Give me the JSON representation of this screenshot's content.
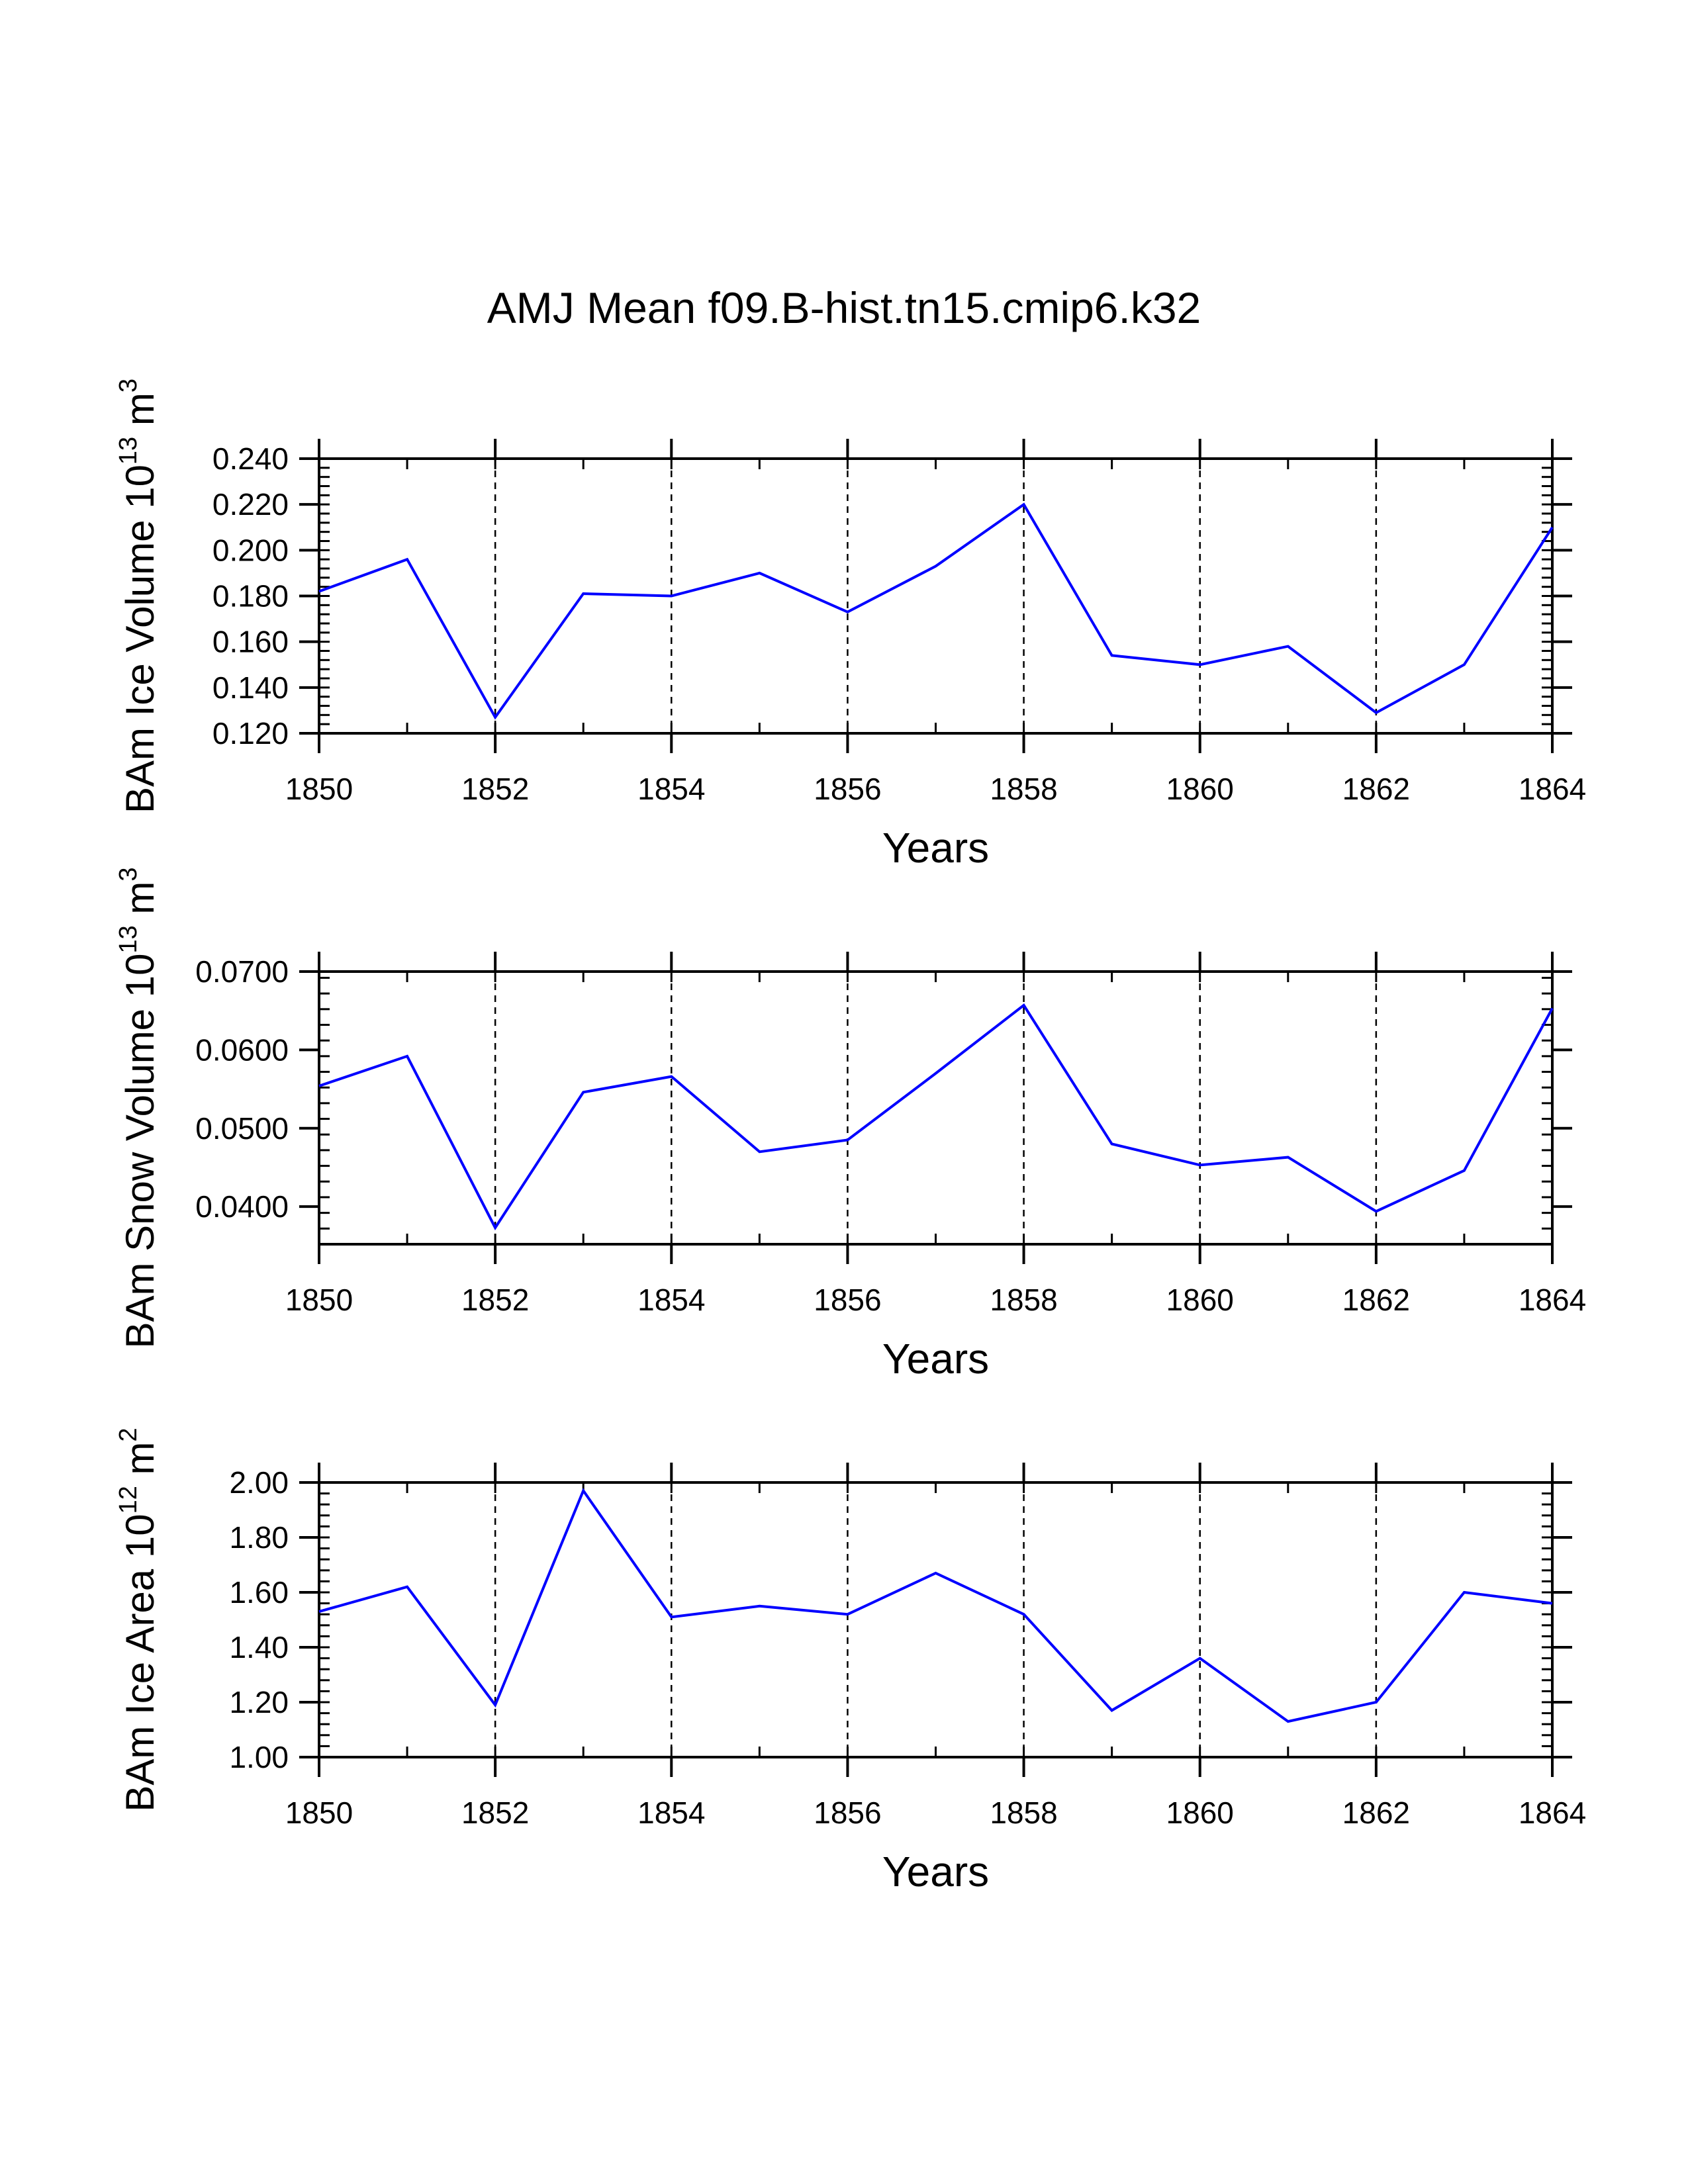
{
  "figure": {
    "title": "AMJ Mean f09.B-hist.tn15.cmip6.k32"
  },
  "style": {
    "line_color": "#0000ff",
    "axis_color": "#000000",
    "grid_color": "#000000",
    "background": "#ffffff"
  },
  "chart_data": [
    {
      "type": "line",
      "name": "ice-volume",
      "title": "",
      "xlabel": "Years",
      "ylabel": {
        "text": "BAm Ice Volume 10",
        "exp": "13",
        "unit": " m",
        "unit_exp": "3"
      },
      "x": [
        1850,
        1851,
        1852,
        1853,
        1854,
        1855,
        1856,
        1857,
        1858,
        1859,
        1860,
        1861,
        1862,
        1863,
        1864
      ],
      "values": [
        0.182,
        0.196,
        0.127,
        0.181,
        0.18,
        0.19,
        0.173,
        0.193,
        0.22,
        0.154,
        0.15,
        0.158,
        0.129,
        0.15,
        0.21
      ],
      "xlim": [
        1850,
        1864
      ],
      "ylim": [
        0.12,
        0.24
      ],
      "xticks": [
        1850,
        1852,
        1854,
        1856,
        1858,
        1860,
        1862,
        1864
      ],
      "xtick_labels": [
        "1850",
        "1852",
        "1854",
        "1856",
        "1858",
        "1860",
        "1862",
        "1864"
      ],
      "yticks": [
        0.12,
        0.14,
        0.16,
        0.18,
        0.2,
        0.22,
        0.24
      ],
      "ytick_labels": [
        "0.120",
        "0.140",
        "0.160",
        "0.180",
        "0.200",
        "0.220",
        "0.240"
      ],
      "yminor_step": 0.004,
      "grid": "vertical-dashed"
    },
    {
      "type": "line",
      "name": "snow-volume",
      "title": "",
      "xlabel": "Years",
      "ylabel": {
        "text": "BAm Snow Volume 10",
        "exp": "13",
        "unit": " m",
        "unit_exp": "3"
      },
      "x": [
        1850,
        1851,
        1852,
        1853,
        1854,
        1855,
        1856,
        1857,
        1858,
        1859,
        1860,
        1861,
        1862,
        1863,
        1864
      ],
      "values": [
        0.0554,
        0.0592,
        0.0373,
        0.0546,
        0.0566,
        0.047,
        0.0485,
        0.057,
        0.0657,
        0.048,
        0.0453,
        0.0463,
        0.0394,
        0.0446,
        0.0653
      ],
      "xlim": [
        1850,
        1864
      ],
      "ylim": [
        0.0352,
        0.07
      ],
      "xticks": [
        1850,
        1852,
        1854,
        1856,
        1858,
        1860,
        1862,
        1864
      ],
      "xtick_labels": [
        "1850",
        "1852",
        "1854",
        "1856",
        "1858",
        "1860",
        "1862",
        "1864"
      ],
      "yticks": [
        0.04,
        0.05,
        0.06,
        0.07
      ],
      "ytick_labels": [
        "0.0400",
        "0.0500",
        "0.0600",
        "0.0700"
      ],
      "yminor_step": 0.002,
      "grid": "vertical-dashed"
    },
    {
      "type": "line",
      "name": "ice-area",
      "title": "",
      "xlabel": "Years",
      "ylabel": {
        "text": "BAm Ice Area 10",
        "exp": "12",
        "unit": " m",
        "unit_exp": "2"
      },
      "x": [
        1850,
        1851,
        1852,
        1853,
        1854,
        1855,
        1856,
        1857,
        1858,
        1859,
        1860,
        1861,
        1862,
        1863,
        1864
      ],
      "values": [
        1.53,
        1.62,
        1.19,
        1.97,
        1.51,
        1.55,
        1.52,
        1.67,
        1.52,
        1.17,
        1.36,
        1.13,
        1.2,
        1.6,
        1.56
      ],
      "xlim": [
        1850,
        1864
      ],
      "ylim": [
        1.0,
        2.0
      ],
      "xticks": [
        1850,
        1852,
        1854,
        1856,
        1858,
        1860,
        1862,
        1864
      ],
      "xtick_labels": [
        "1850",
        "1852",
        "1854",
        "1856",
        "1858",
        "1860",
        "1862",
        "1864"
      ],
      "yticks": [
        1.0,
        1.2,
        1.4,
        1.6,
        1.8,
        2.0
      ],
      "ytick_labels": [
        "1.00",
        "1.20",
        "1.40",
        "1.60",
        "1.80",
        "2.00"
      ],
      "yminor_step": 0.04,
      "grid": "vertical-dashed"
    }
  ]
}
